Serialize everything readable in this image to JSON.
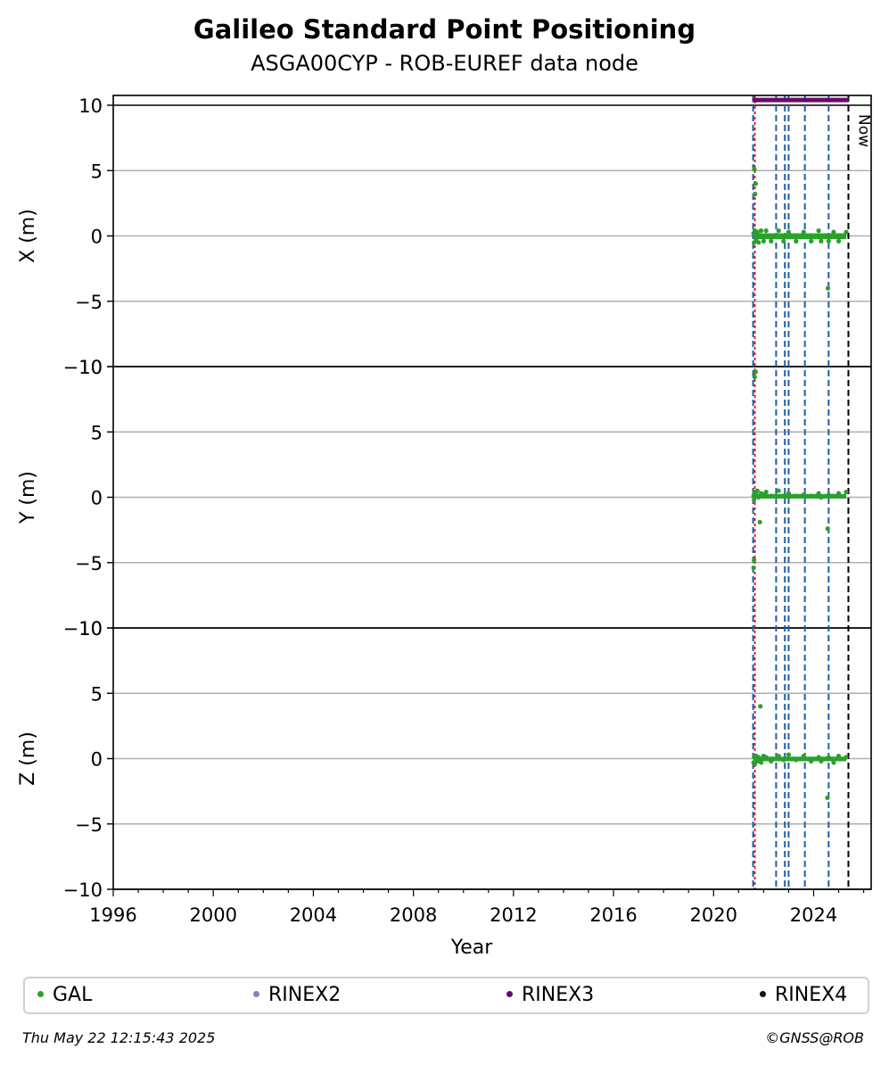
{
  "chart": {
    "title": "Galileo Standard Point Positioning",
    "subtitle": "ASGA00CYP - ROB-EUREF data node"
  },
  "footer": {
    "timestamp": "Thu May 22 12:15:43 2025",
    "credit": "©GNSS@ROB"
  },
  "legend": [
    {
      "label": "GAL",
      "color": "#2ca02c"
    },
    {
      "label": "RINEX2",
      "color": "#8c7fbf"
    },
    {
      "label": "RINEX3",
      "color": "#6a0a6a"
    },
    {
      "label": "RINEX4",
      "color": "#1a0a1a"
    }
  ],
  "chart_data": {
    "type": "scatter",
    "xlabel": "Year",
    "xlim": [
      1996,
      2026.3
    ],
    "xticks": [
      1996,
      2000,
      2004,
      2008,
      2012,
      2016,
      2020,
      2024
    ],
    "ylim": [
      -10,
      10
    ],
    "yticks": [
      -10,
      -5,
      0,
      5,
      10
    ],
    "grid": "y-major",
    "legend_position": "bottom",
    "panels": [
      {
        "ylabel": "X (m)",
        "series": [
          {
            "name": "GAL",
            "color": "#2ca02c",
            "x": [
              2021.6,
              2021.62,
              2021.65,
              2021.7,
              2021.75,
              2021.8,
              2021.9,
              2022.0,
              2022.1,
              2022.3,
              2022.6,
              2022.8,
              2023.0,
              2023.3,
              2023.6,
              2023.9,
              2024.2,
              2024.3,
              2024.6,
              2024.8,
              2025.0,
              2025.3,
              2021.63,
              2021.66,
              2021.68,
              2024.57
            ],
            "y": [
              0.2,
              -0.5,
              0.4,
              -0.3,
              0.3,
              -0.5,
              0.4,
              -0.4,
              0.4,
              -0.4,
              0.4,
              -0.4,
              0.3,
              -0.4,
              0.3,
              -0.4,
              0.4,
              -0.4,
              -0.4,
              0.3,
              -0.4,
              0.3,
              5.1,
              3.2,
              4.0,
              -4.0
            ]
          }
        ],
        "bar": {
          "name": "RINEX3",
          "color": "#6a0a6a",
          "x_start": 2021.55,
          "x_end": 2025.4,
          "y": 10.4
        }
      },
      {
        "ylabel": "Y (m)",
        "series": [
          {
            "name": "GAL",
            "color": "#2ca02c",
            "x": [
              2021.6,
              2021.62,
              2021.65,
              2021.7,
              2021.75,
              2021.8,
              2021.9,
              2022.0,
              2022.1,
              2022.3,
              2022.6,
              2022.8,
              2023.0,
              2023.3,
              2023.6,
              2023.9,
              2024.2,
              2024.3,
              2024.6,
              2024.8,
              2025.0,
              2025.3,
              2021.64,
              2021.68,
              2021.62,
              2021.6,
              2021.85,
              2024.56
            ],
            "y": [
              0.1,
              -0.2,
              0.4,
              0.2,
              0.5,
              0.0,
              0.3,
              0.2,
              0.4,
              0.1,
              0.5,
              0.1,
              0.3,
              0.1,
              0.2,
              0.1,
              0.3,
              0.0,
              0.2,
              0.1,
              0.3,
              0.4,
              9.2,
              9.6,
              -4.8,
              -5.4,
              -1.9,
              -2.4
            ]
          }
        ]
      },
      {
        "ylabel": "Z (m)",
        "series": [
          {
            "name": "GAL",
            "color": "#2ca02c",
            "x": [
              2021.6,
              2021.62,
              2021.65,
              2021.7,
              2021.75,
              2021.8,
              2021.9,
              2022.0,
              2022.1,
              2022.3,
              2022.6,
              2022.8,
              2023.0,
              2023.3,
              2023.6,
              2023.9,
              2024.2,
              2024.3,
              2024.6,
              2024.8,
              2025.0,
              2025.3,
              2021.87,
              2024.55
            ],
            "y": [
              -0.3,
              0.1,
              -0.4,
              0.2,
              -0.2,
              0.1,
              -0.3,
              0.2,
              0.1,
              -0.2,
              0.2,
              -0.1,
              0.3,
              -0.1,
              0.2,
              -0.2,
              0.1,
              -0.2,
              0.1,
              -0.3,
              0.2,
              0.1,
              4.0,
              -3.0
            ]
          }
        ]
      }
    ],
    "vlines": [
      {
        "x": 2021.65,
        "color": "#d62728",
        "style": "dotted"
      },
      {
        "x": 2021.58,
        "color": "#1f5fa8",
        "style": "dashed"
      },
      {
        "x": 2022.5,
        "color": "#1f5fa8",
        "style": "dashed"
      },
      {
        "x": 2022.85,
        "color": "#1f5fa8",
        "style": "dashed"
      },
      {
        "x": 2023.0,
        "color": "#1f5fa8",
        "style": "dashed"
      },
      {
        "x": 2023.65,
        "color": "#1f5fa8",
        "style": "dashed"
      },
      {
        "x": 2024.6,
        "color": "#1f5fa8",
        "style": "dashed"
      },
      {
        "x": 2025.39,
        "color": "#000000",
        "style": "dashed",
        "label": "Now"
      }
    ]
  }
}
